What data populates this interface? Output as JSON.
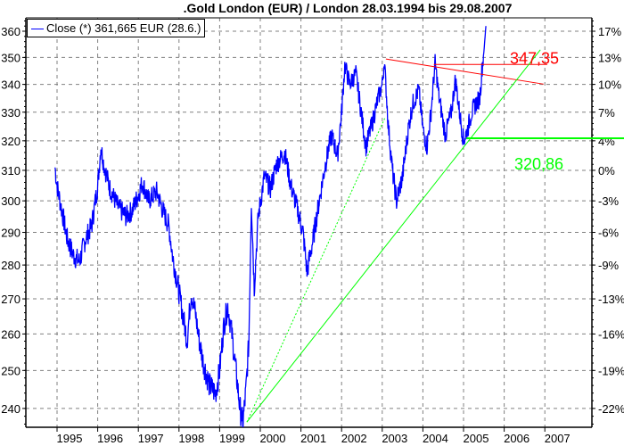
{
  "chart_data": {
    "type": "line",
    "title": ".Gold London (EUR) / London 28.03.1994 bis 29.08.2007",
    "legend": {
      "label": "Close (*) 361,665 EUR (28.6.)",
      "placement": "top-left"
    },
    "y_scale": "log",
    "ylim": [
      234,
      366
    ],
    "left_ticks": [
      360,
      350,
      340,
      330,
      320,
      310,
      300,
      290,
      280,
      270,
      260,
      250,
      240
    ],
    "right_ticks": [
      "17%",
      "13%",
      "10%",
      "7%",
      "4%",
      "0%",
      "-3%",
      "-6%",
      "-9%",
      "-13%",
      "-16%",
      "-19%",
      "-22%"
    ],
    "x_ticks": [
      "1995",
      "1996",
      "1997",
      "1998",
      "1999",
      "2000",
      "2001",
      "2002",
      "2003",
      "2004",
      "2005",
      "2006",
      "2007"
    ],
    "xlim": [
      1994.24,
      2007.92
    ],
    "grid": true,
    "series": [
      {
        "name": "Close",
        "color": "#0000ff",
        "points": [
          [
            1994.95,
            311
          ],
          [
            1995.0,
            305
          ],
          [
            1995.1,
            298
          ],
          [
            1995.25,
            288
          ],
          [
            1995.4,
            283
          ],
          [
            1995.55,
            281
          ],
          [
            1995.7,
            288
          ],
          [
            1995.85,
            292
          ],
          [
            1996.0,
            305
          ],
          [
            1996.08,
            318
          ],
          [
            1996.15,
            312
          ],
          [
            1996.3,
            304
          ],
          [
            1996.5,
            298
          ],
          [
            1996.7,
            295
          ],
          [
            1996.85,
            297
          ],
          [
            1997.0,
            302
          ],
          [
            1997.1,
            306
          ],
          [
            1997.25,
            300
          ],
          [
            1997.45,
            303
          ],
          [
            1997.6,
            297
          ],
          [
            1997.75,
            292
          ],
          [
            1997.85,
            282
          ],
          [
            1998.0,
            272
          ],
          [
            1998.1,
            265
          ],
          [
            1998.2,
            258
          ],
          [
            1998.3,
            272
          ],
          [
            1998.4,
            266
          ],
          [
            1998.5,
            258
          ],
          [
            1998.6,
            252
          ],
          [
            1998.75,
            246
          ],
          [
            1998.9,
            244
          ],
          [
            1999.0,
            250
          ],
          [
            1999.1,
            262
          ],
          [
            1999.2,
            268
          ],
          [
            1999.3,
            260
          ],
          [
            1999.4,
            250
          ],
          [
            1999.5,
            240
          ],
          [
            1999.57,
            236
          ],
          [
            1999.65,
            245
          ],
          [
            1999.72,
            258
          ],
          [
            1999.78,
            300
          ],
          [
            1999.85,
            273
          ],
          [
            1999.95,
            295
          ],
          [
            2000.1,
            308
          ],
          [
            2000.25,
            304
          ],
          [
            2000.4,
            312
          ],
          [
            2000.6,
            316
          ],
          [
            2000.75,
            305
          ],
          [
            2000.9,
            298
          ],
          [
            2001.05,
            290
          ],
          [
            2001.15,
            278
          ],
          [
            2001.3,
            288
          ],
          [
            2001.45,
            300
          ],
          [
            2001.6,
            312
          ],
          [
            2001.75,
            322
          ],
          [
            2001.9,
            315
          ],
          [
            2002.0,
            330
          ],
          [
            2002.08,
            347
          ],
          [
            2002.2,
            340
          ],
          [
            2002.35,
            344
          ],
          [
            2002.5,
            328
          ],
          [
            2002.6,
            318
          ],
          [
            2002.75,
            326
          ],
          [
            2002.9,
            335
          ],
          [
            2003.0,
            340
          ],
          [
            2003.05,
            349
          ],
          [
            2003.15,
            325
          ],
          [
            2003.25,
            310
          ],
          [
            2003.35,
            300
          ],
          [
            2003.5,
            308
          ],
          [
            2003.65,
            325
          ],
          [
            2003.75,
            333
          ],
          [
            2003.9,
            338
          ],
          [
            2004.0,
            324
          ],
          [
            2004.1,
            318
          ],
          [
            2004.2,
            330
          ],
          [
            2004.3,
            348
          ],
          [
            2004.4,
            335
          ],
          [
            2004.55,
            322
          ],
          [
            2004.7,
            330
          ],
          [
            2004.8,
            342
          ],
          [
            2004.9,
            330
          ],
          [
            2005.0,
            320
          ],
          [
            2005.1,
            324
          ],
          [
            2005.2,
            330
          ],
          [
            2005.3,
            333
          ],
          [
            2005.4,
            335
          ],
          [
            2005.45,
            345
          ],
          [
            2005.5,
            352
          ],
          [
            2005.55,
            362
          ]
        ]
      }
    ],
    "annotations": {
      "resistance_value": "347,35",
      "support_value": "320,86",
      "red_color": "#ff0000",
      "green_color": "#00ff00",
      "red_trend": [
        [
          2003.09,
          349.4
        ],
        [
          2006.97,
          340.1
        ]
      ],
      "red_level": {
        "from": 2004.27,
        "to": 2007.06,
        "value": 347.35
      },
      "green_trend": [
        [
          1999.67,
          236.5
        ],
        [
          2006.89,
          352.9
        ]
      ],
      "green_trend_dotted": [
        [
          1999.67,
          236.5
        ],
        [
          2003.07,
          328.1
        ]
      ],
      "green_level": {
        "from": 2005.07,
        "to": 2008.0,
        "value": 320.86
      }
    }
  }
}
